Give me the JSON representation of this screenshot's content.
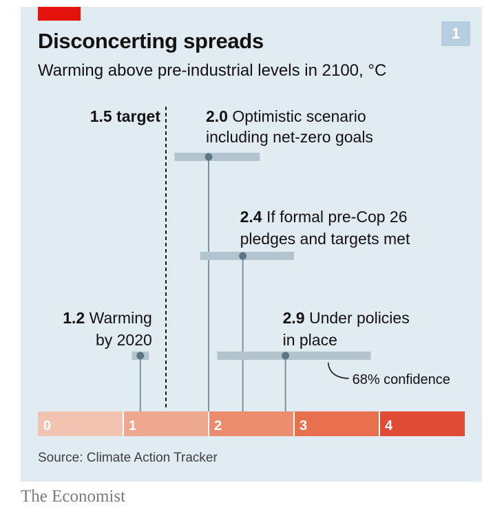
{
  "header": {
    "title": "Disconcerting spreads",
    "subtitle": "Warming above pre-industrial levels in 2100, °C",
    "badge": "1"
  },
  "footer": {
    "source": "Source: Climate Action Tracker",
    "brand": "The Economist"
  },
  "chart_data": {
    "type": "range",
    "xlim": [
      0,
      5
    ],
    "ticks": [
      0,
      1,
      2,
      3,
      4
    ],
    "target": {
      "value": 1.5,
      "label": "1.5 target"
    },
    "scenarios": [
      {
        "value": 1.2,
        "low": 1.1,
        "high": 1.3,
        "bold": "1.2",
        "line1": " Warming",
        "line2": "by 2020",
        "align": "end"
      },
      {
        "value": 2.0,
        "low": 1.6,
        "high": 2.6,
        "bold": "2.0",
        "line1": " Optimistic scenario",
        "line2": "including net-zero goals",
        "align": "start"
      },
      {
        "value": 2.4,
        "low": 1.9,
        "high": 3.0,
        "bold": "2.4",
        "line1": " If formal pre-Cop 26",
        "line2": "pledges and targets met",
        "align": "start"
      },
      {
        "value": 2.9,
        "low": 2.1,
        "high": 3.9,
        "bold": "2.9",
        "line1": " Under policies",
        "line2": "in place",
        "align": "start"
      }
    ],
    "confidence_label": "68% confidence",
    "colors": {
      "band": [
        "#f3c3b1",
        "#efa890",
        "#eb8c6f",
        "#e7704e",
        "#e04b35"
      ],
      "range": "#b3c4cf",
      "stem": "#7d939f",
      "dot": "#5d7683",
      "target": "#121212"
    }
  }
}
